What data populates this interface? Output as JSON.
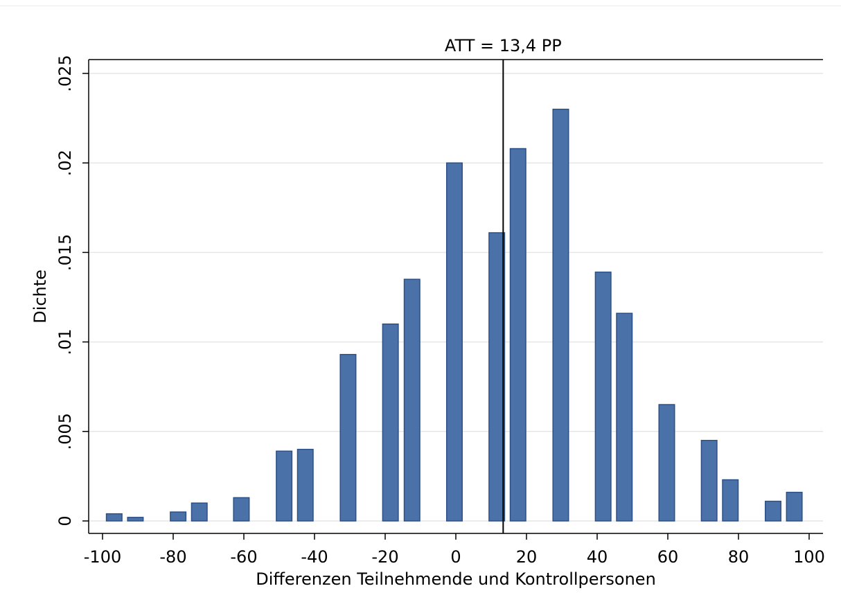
{
  "chart_data": {
    "type": "bar",
    "title": "",
    "xlabel": "Differenzen Teilnehmende und Kontrollpersonen",
    "ylabel": "Dichte",
    "xlim": [
      -100,
      100
    ],
    "ylim": [
      0,
      0.025
    ],
    "grid": true,
    "bar_color": "#4a72a8",
    "bar_edge_color": "#2c4f86",
    "x_ticks": [
      {
        "value": -100,
        "label": "-100"
      },
      {
        "value": -80,
        "label": "-80"
      },
      {
        "value": -60,
        "label": "-60"
      },
      {
        "value": -40,
        "label": "-40"
      },
      {
        "value": -20,
        "label": "-20"
      },
      {
        "value": 0,
        "label": "0"
      },
      {
        "value": 20,
        "label": "20"
      },
      {
        "value": 40,
        "label": "40"
      },
      {
        "value": 60,
        "label": "60"
      },
      {
        "value": 80,
        "label": "80"
      },
      {
        "value": 100,
        "label": "100"
      }
    ],
    "y_ticks": [
      {
        "value": 0,
        "label": "0"
      },
      {
        "value": 0.005,
        "label": ".005"
      },
      {
        "value": 0.01,
        "label": ".01"
      },
      {
        "value": 0.015,
        "label": ".015"
      },
      {
        "value": 0.02,
        "label": ".02"
      },
      {
        "value": 0.025,
        "label": ".025"
      }
    ],
    "reference_line": {
      "x": 13.4,
      "label": "ATT = 13,4 PP"
    },
    "bars": [
      {
        "x": -96.7,
        "y": 0.0004
      },
      {
        "x": -90.7,
        "y": 0.0002
      },
      {
        "x": -78.6,
        "y": 0.0005
      },
      {
        "x": -72.6,
        "y": 0.001
      },
      {
        "x": -60.7,
        "y": 0.0013
      },
      {
        "x": -48.6,
        "y": 0.0039
      },
      {
        "x": -42.6,
        "y": 0.004
      },
      {
        "x": -30.5,
        "y": 0.0093
      },
      {
        "x": -18.5,
        "y": 0.011
      },
      {
        "x": -12.4,
        "y": 0.0135
      },
      {
        "x": -0.4,
        "y": 0.02
      },
      {
        "x": 11.6,
        "y": 0.0161
      },
      {
        "x": 17.6,
        "y": 0.0208
      },
      {
        "x": 29.7,
        "y": 0.023
      },
      {
        "x": 41.7,
        "y": 0.0139
      },
      {
        "x": 47.7,
        "y": 0.0116
      },
      {
        "x": 59.7,
        "y": 0.0065
      },
      {
        "x": 71.7,
        "y": 0.0045
      },
      {
        "x": 77.7,
        "y": 0.0023
      },
      {
        "x": 89.8,
        "y": 0.0011
      },
      {
        "x": 95.8,
        "y": 0.0016
      }
    ]
  }
}
